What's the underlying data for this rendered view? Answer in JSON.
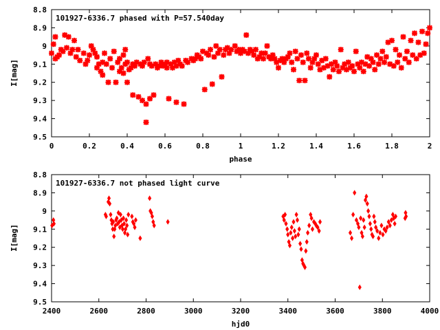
{
  "chart_data": [
    {
      "type": "scatter",
      "title": "101927-6336.7 phased with P=57.540day",
      "xlabel": "phase",
      "ylabel": "I[mag]",
      "xlim": [
        0,
        2
      ],
      "ylim": [
        8.8,
        9.5
      ],
      "y_inverted": true,
      "grid": false,
      "marker_color": "#ff0000",
      "xticks": [
        "0",
        "0.2",
        "0.4",
        "0.6",
        "0.8",
        "1",
        "1.2",
        "1.4",
        "1.6",
        "1.8",
        "2"
      ],
      "yticks": [
        "8.8",
        "8.9",
        "9",
        "9.1",
        "9.2",
        "9.3",
        "9.4",
        "9.5"
      ],
      "points": [
        [
          0.0,
          9.04
        ],
        [
          0.01,
          8.99
        ],
        [
          0.02,
          9.07
        ],
        [
          0.02,
          8.95
        ],
        [
          0.03,
          9.06
        ],
        [
          0.04,
          9.05
        ],
        [
          0.05,
          9.02
        ],
        [
          0.06,
          9.03
        ],
        [
          0.07,
          8.94
        ],
        [
          0.08,
          9.01
        ],
        [
          0.09,
          8.95
        ],
        [
          0.1,
          9.04
        ],
        [
          0.11,
          9.02
        ],
        [
          0.12,
          8.97
        ],
        [
          0.13,
          9.06
        ],
        [
          0.14,
          9.02
        ],
        [
          0.15,
          9.08
        ],
        [
          0.17,
          9.04
        ],
        [
          0.18,
          9.1
        ],
        [
          0.19,
          9.08
        ],
        [
          0.2,
          9.05
        ],
        [
          0.21,
          9.0
        ],
        [
          0.22,
          9.02
        ],
        [
          0.23,
          9.04
        ],
        [
          0.24,
          9.06
        ],
        [
          0.24,
          9.12
        ],
        [
          0.25,
          9.1
        ],
        [
          0.26,
          9.14
        ],
        [
          0.27,
          9.16
        ],
        [
          0.27,
          9.09
        ],
        [
          0.28,
          9.04
        ],
        [
          0.29,
          9.1
        ],
        [
          0.3,
          9.2
        ],
        [
          0.31,
          9.07
        ],
        [
          0.32,
          9.12
        ],
        [
          0.33,
          9.03
        ],
        [
          0.34,
          9.2
        ],
        [
          0.35,
          9.09
        ],
        [
          0.36,
          9.14
        ],
        [
          0.36,
          9.07
        ],
        [
          0.37,
          9.12
        ],
        [
          0.38,
          9.05
        ],
        [
          0.38,
          9.15
        ],
        [
          0.39,
          9.02
        ],
        [
          0.39,
          9.1
        ],
        [
          0.4,
          9.09
        ],
        [
          0.4,
          9.2
        ],
        [
          0.41,
          9.13
        ],
        [
          0.42,
          9.12
        ],
        [
          0.43,
          9.1
        ],
        [
          0.43,
          9.27
        ],
        [
          0.44,
          9.11
        ],
        [
          0.45,
          9.09
        ],
        [
          0.46,
          9.28
        ],
        [
          0.47,
          9.1
        ],
        [
          0.48,
          9.11
        ],
        [
          0.48,
          9.3
        ],
        [
          0.49,
          9.09
        ],
        [
          0.5,
          9.32
        ],
        [
          0.5,
          9.42
        ],
        [
          0.51,
          9.07
        ],
        [
          0.52,
          9.29
        ],
        [
          0.52,
          9.1
        ],
        [
          0.53,
          9.11
        ],
        [
          0.54,
          9.27
        ],
        [
          0.55,
          9.1
        ],
        [
          0.56,
          9.12
        ],
        [
          0.57,
          9.11
        ],
        [
          0.58,
          9.09
        ],
        [
          0.59,
          9.11
        ],
        [
          0.6,
          9.1
        ],
        [
          0.61,
          9.09
        ],
        [
          0.61,
          9.12
        ],
        [
          0.62,
          9.29
        ],
        [
          0.63,
          9.1
        ],
        [
          0.64,
          9.12
        ],
        [
          0.65,
          9.09
        ],
        [
          0.66,
          9.11
        ],
        [
          0.66,
          9.31
        ],
        [
          0.67,
          9.08
        ],
        [
          0.68,
          9.1
        ],
        [
          0.69,
          9.11
        ],
        [
          0.7,
          9.32
        ],
        [
          0.71,
          9.08
        ],
        [
          0.72,
          9.09
        ],
        [
          0.74,
          9.07
        ],
        [
          0.75,
          9.08
        ],
        [
          0.76,
          9.07
        ],
        [
          0.77,
          9.05
        ],
        [
          0.78,
          9.06
        ],
        [
          0.79,
          9.07
        ],
        [
          0.8,
          9.03
        ],
        [
          0.81,
          9.24
        ],
        [
          0.82,
          9.04
        ],
        [
          0.83,
          9.05
        ],
        [
          0.84,
          9.02
        ],
        [
          0.85,
          9.21
        ],
        [
          0.86,
          9.06
        ],
        [
          0.87,
          9.0
        ],
        [
          0.88,
          9.04
        ],
        [
          0.89,
          9.02
        ],
        [
          0.9,
          9.17
        ],
        [
          0.91,
          9.05
        ],
        [
          0.92,
          9.02
        ],
        [
          0.93,
          9.01
        ],
        [
          0.94,
          9.04
        ],
        [
          0.95,
          9.02
        ],
        [
          0.97,
          9.0
        ],
        [
          0.98,
          9.03
        ],
        [
          0.99,
          9.02
        ],
        [
          1.0,
          9.04
        ],
        [
          1.01,
          9.02
        ],
        [
          1.02,
          9.03
        ],
        [
          1.03,
          8.94
        ],
        [
          1.04,
          9.04
        ],
        [
          1.05,
          9.02
        ],
        [
          1.06,
          9.03
        ],
        [
          1.07,
          9.05
        ],
        [
          1.08,
          9.02
        ],
        [
          1.09,
          9.07
        ],
        [
          1.1,
          9.06
        ],
        [
          1.11,
          9.04
        ],
        [
          1.12,
          9.07
        ],
        [
          1.13,
          9.04
        ],
        [
          1.14,
          9.0
        ],
        [
          1.15,
          9.06
        ],
        [
          1.16,
          9.07
        ],
        [
          1.17,
          9.05
        ],
        [
          1.18,
          9.07
        ],
        [
          1.19,
          9.09
        ],
        [
          1.2,
          9.12
        ],
        [
          1.21,
          9.08
        ],
        [
          1.22,
          9.07
        ],
        [
          1.23,
          9.09
        ],
        [
          1.24,
          9.07
        ],
        [
          1.25,
          9.06
        ],
        [
          1.26,
          9.04
        ],
        [
          1.27,
          9.09
        ],
        [
          1.28,
          9.13
        ],
        [
          1.29,
          9.03
        ],
        [
          1.3,
          9.07
        ],
        [
          1.31,
          9.19
        ],
        [
          1.32,
          9.05
        ],
        [
          1.33,
          9.09
        ],
        [
          1.34,
          9.19
        ],
        [
          1.35,
          9.04
        ],
        [
          1.36,
          9.07
        ],
        [
          1.37,
          9.12
        ],
        [
          1.38,
          9.09
        ],
        [
          1.39,
          9.07
        ],
        [
          1.4,
          9.05
        ],
        [
          1.41,
          9.1
        ],
        [
          1.42,
          9.13
        ],
        [
          1.43,
          9.08
        ],
        [
          1.44,
          9.12
        ],
        [
          1.45,
          9.07
        ],
        [
          1.46,
          9.11
        ],
        [
          1.47,
          9.17
        ],
        [
          1.48,
          9.1
        ],
        [
          1.49,
          9.13
        ],
        [
          1.5,
          9.09
        ],
        [
          1.51,
          9.11
        ],
        [
          1.52,
          9.14
        ],
        [
          1.53,
          9.02
        ],
        [
          1.54,
          9.12
        ],
        [
          1.55,
          9.1
        ],
        [
          1.56,
          9.13
        ],
        [
          1.57,
          9.09
        ],
        [
          1.58,
          9.12
        ],
        [
          1.59,
          9.11
        ],
        [
          1.6,
          9.14
        ],
        [
          1.61,
          9.03
        ],
        [
          1.62,
          9.1
        ],
        [
          1.63,
          9.12
        ],
        [
          1.64,
          9.09
        ],
        [
          1.65,
          9.14
        ],
        [
          1.66,
          9.1
        ],
        [
          1.67,
          9.06
        ],
        [
          1.68,
          9.11
        ],
        [
          1.69,
          9.07
        ],
        [
          1.7,
          9.09
        ],
        [
          1.71,
          9.13
        ],
        [
          1.72,
          9.05
        ],
        [
          1.73,
          9.1
        ],
        [
          1.74,
          9.07
        ],
        [
          1.75,
          9.03
        ],
        [
          1.76,
          9.09
        ],
        [
          1.77,
          9.06
        ],
        [
          1.78,
          8.98
        ],
        [
          1.79,
          9.1
        ],
        [
          1.8,
          8.97
        ],
        [
          1.81,
          9.11
        ],
        [
          1.82,
          9.02
        ],
        [
          1.83,
          9.09
        ],
        [
          1.84,
          9.05
        ],
        [
          1.85,
          9.12
        ],
        [
          1.86,
          8.95
        ],
        [
          1.87,
          9.07
        ],
        [
          1.88,
          9.03
        ],
        [
          1.89,
          9.09
        ],
        [
          1.9,
          8.97
        ],
        [
          1.91,
          9.05
        ],
        [
          1.92,
          8.93
        ],
        [
          1.93,
          9.07
        ],
        [
          1.94,
          8.98
        ],
        [
          1.95,
          9.05
        ],
        [
          1.96,
          8.92
        ],
        [
          1.97,
          9.04
        ],
        [
          1.98,
          8.99
        ],
        [
          1.99,
          8.93
        ],
        [
          2.0,
          8.9
        ]
      ]
    },
    {
      "type": "scatter",
      "title": "101927-6336.7 not phased light curve",
      "xlabel": "hjd0",
      "ylabel": "I[mag]",
      "xlim": [
        2400,
        4000
      ],
      "ylim": [
        8.8,
        9.5
      ],
      "y_inverted": true,
      "grid": false,
      "marker_color": "#ff0000",
      "xticks": [
        "2400",
        "2600",
        "2800",
        "3000",
        "3200",
        "3400",
        "3600",
        "3800",
        "4000"
      ],
      "yticks": [
        "8.8",
        "8.9",
        "9",
        "9.1",
        "9.2",
        "9.3",
        "9.4",
        "9.5"
      ],
      "points": [
        [
          2402,
          9.08
        ],
        [
          2408,
          9.05
        ],
        [
          2410,
          9.07
        ],
        [
          2628,
          9.02
        ],
        [
          2631,
          9.03
        ],
        [
          2640,
          8.95
        ],
        [
          2643,
          8.93
        ],
        [
          2646,
          8.96
        ],
        [
          2650,
          9.02
        ],
        [
          2653,
          9.05
        ],
        [
          2656,
          9.07
        ],
        [
          2659,
          9.1
        ],
        [
          2661,
          9.06
        ],
        [
          2664,
          9.14
        ],
        [
          2667,
          9.1
        ],
        [
          2670,
          9.08
        ],
        [
          2673,
          9.05
        ],
        [
          2676,
          9.04
        ],
        [
          2680,
          9.07
        ],
        [
          2683,
          9.01
        ],
        [
          2686,
          9.06
        ],
        [
          2689,
          9.09
        ],
        [
          2692,
          9.02
        ],
        [
          2695,
          9.05
        ],
        [
          2698,
          9.08
        ],
        [
          2701,
          9.1
        ],
        [
          2704,
          9.04
        ],
        [
          2707,
          9.07
        ],
        [
          2710,
          9.12
        ],
        [
          2713,
          9.1
        ],
        [
          2716,
          9.05
        ],
        [
          2719,
          9.08
        ],
        [
          2722,
          9.13
        ],
        [
          2725,
          9.02
        ],
        [
          2740,
          9.03
        ],
        [
          2744,
          9.06
        ],
        [
          2748,
          9.07
        ],
        [
          2752,
          9.09
        ],
        [
          2756,
          9.05
        ],
        [
          2775,
          9.15
        ],
        [
          2815,
          8.93
        ],
        [
          2818,
          9.0
        ],
        [
          2822,
          9.01
        ],
        [
          2826,
          9.03
        ],
        [
          2830,
          9.06
        ],
        [
          2834,
          9.08
        ],
        [
          2892,
          9.06
        ],
        [
          3380,
          9.03
        ],
        [
          3384,
          9.05
        ],
        [
          3388,
          9.02
        ],
        [
          3392,
          9.07
        ],
        [
          3397,
          9.1
        ],
        [
          3400,
          9.13
        ],
        [
          3404,
          9.17
        ],
        [
          3408,
          9.19
        ],
        [
          3412,
          9.12
        ],
        [
          3416,
          9.09
        ],
        [
          3420,
          9.15
        ],
        [
          3424,
          9.06
        ],
        [
          3428,
          9.11
        ],
        [
          3432,
          9.14
        ],
        [
          3436,
          9.02
        ],
        [
          3440,
          9.05
        ],
        [
          3444,
          9.13
        ],
        [
          3448,
          9.1
        ],
        [
          3452,
          9.18
        ],
        [
          3456,
          9.21
        ],
        [
          3460,
          9.27
        ],
        [
          3464,
          9.29
        ],
        [
          3468,
          9.3
        ],
        [
          3472,
          9.31
        ],
        [
          3476,
          9.22
        ],
        [
          3480,
          9.17
        ],
        [
          3484,
          9.12
        ],
        [
          3490,
          9.08
        ],
        [
          3496,
          9.02
        ],
        [
          3500,
          9.04
        ],
        [
          3504,
          9.1
        ],
        [
          3510,
          9.06
        ],
        [
          3516,
          9.07
        ],
        [
          3520,
          9.08
        ],
        [
          3526,
          9.09
        ],
        [
          3532,
          9.11
        ],
        [
          3536,
          9.06
        ],
        [
          3664,
          9.12
        ],
        [
          3670,
          9.15
        ],
        [
          3676,
          9.02
        ],
        [
          3682,
          8.9
        ],
        [
          3690,
          9.05
        ],
        [
          3696,
          9.07
        ],
        [
          3700,
          9.09
        ],
        [
          3704,
          9.42
        ],
        [
          3708,
          9.04
        ],
        [
          3712,
          9.12
        ],
        [
          3716,
          9.14
        ],
        [
          3720,
          9.05
        ],
        [
          3724,
          9.09
        ],
        [
          3728,
          8.94
        ],
        [
          3732,
          8.92
        ],
        [
          3736,
          8.96
        ],
        [
          3740,
          9.0
        ],
        [
          3744,
          9.03
        ],
        [
          3748,
          9.07
        ],
        [
          3752,
          9.1
        ],
        [
          3756,
          9.13
        ],
        [
          3760,
          9.14
        ],
        [
          3764,
          9.03
        ],
        [
          3768,
          9.06
        ],
        [
          3772,
          9.09
        ],
        [
          3778,
          9.11
        ],
        [
          3784,
          9.15
        ],
        [
          3790,
          9.12
        ],
        [
          3796,
          9.08
        ],
        [
          3802,
          9.13
        ],
        [
          3808,
          9.1
        ],
        [
          3814,
          9.11
        ],
        [
          3820,
          9.09
        ],
        [
          3826,
          9.06
        ],
        [
          3832,
          9.08
        ],
        [
          3838,
          9.05
        ],
        [
          3844,
          9.02
        ],
        [
          3848,
          9.04
        ],
        [
          3852,
          9.07
        ],
        [
          3856,
          9.03
        ],
        [
          3896,
          9.04
        ],
        [
          3898,
          9.01
        ],
        [
          3900,
          9.03
        ]
      ]
    }
  ]
}
